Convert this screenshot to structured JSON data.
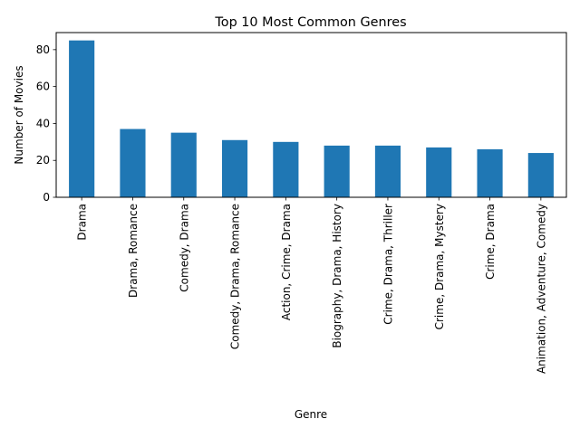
{
  "chart_data": {
    "type": "bar",
    "title": "Top 10 Most Common Genres",
    "xlabel": "Genre",
    "ylabel": "Number of Movies",
    "categories": [
      "Drama",
      "Drama, Romance",
      "Comedy, Drama",
      "Comedy, Drama, Romance",
      "Action, Crime, Drama",
      "Biography, Drama, History",
      "Crime, Drama, Thriller",
      "Crime, Drama, Mystery",
      "Crime, Drama",
      "Animation, Adventure, Comedy"
    ],
    "values": [
      85,
      37,
      35,
      31,
      30,
      28,
      28,
      27,
      26,
      24
    ],
    "ylim": [
      0,
      89.25
    ],
    "yticks": [
      0,
      20,
      40,
      60,
      80
    ],
    "grid": false,
    "legend": "none",
    "bar_color": "#1f77b4"
  }
}
